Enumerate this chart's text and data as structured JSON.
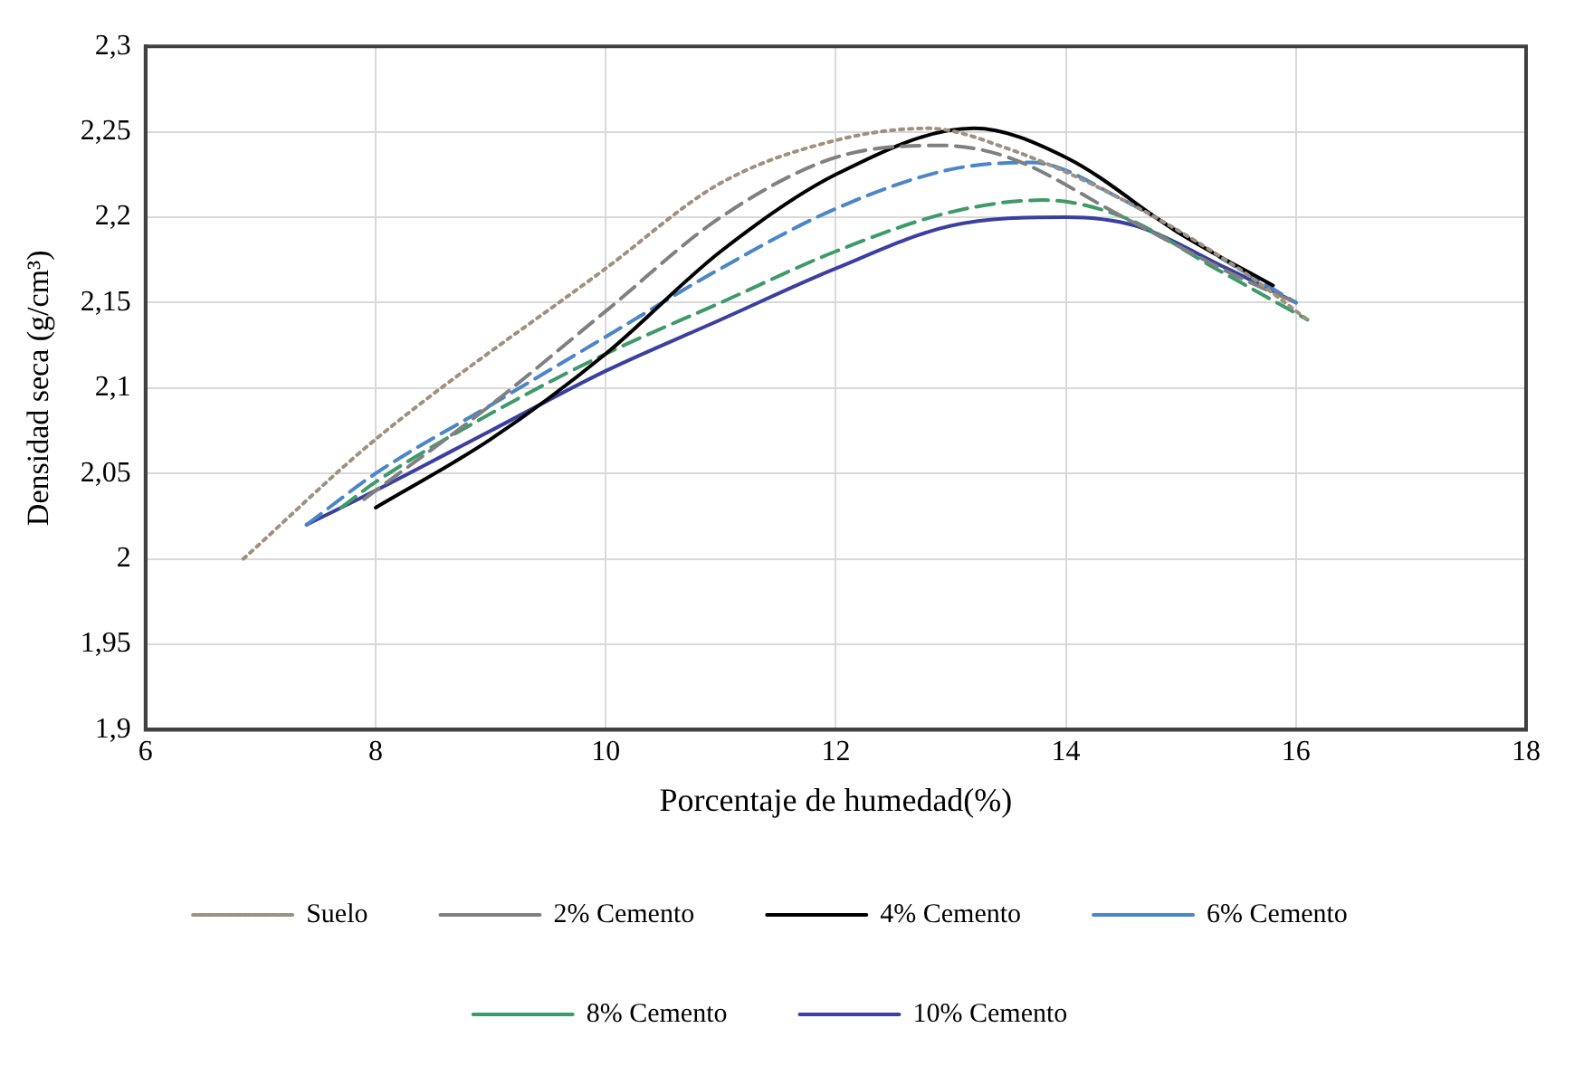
{
  "chart_data": {
    "type": "line",
    "xlabel": "Porcentaje de humedad(%)",
    "ylabel": "Densidad seca (g/cm³)",
    "xlim": [
      6,
      18
    ],
    "xticks": [
      6,
      8,
      10,
      12,
      14,
      16,
      18
    ],
    "ylim": [
      1.9,
      2.3
    ],
    "yticks": [
      {
        "value": 1.9,
        "label": "1,9"
      },
      {
        "value": 1.95,
        "label": "1,95"
      },
      2,
      {
        "value": 2.05,
        "label": "2,05"
      },
      {
        "value": 2.1,
        "label": "2,1"
      },
      {
        "value": 2.15,
        "label": "2,15"
      },
      {
        "value": 2.2,
        "label": "2,2"
      },
      {
        "value": 2.25,
        "label": "2,25"
      },
      {
        "value": 2.3,
        "label": "2,3"
      }
    ],
    "grid": true,
    "legend": "bottom",
    "marker": "none",
    "series": [
      {
        "name": "Suelo",
        "color": "#a09080",
        "line_style": "dotted",
        "x": [
          6.85,
          8,
          10,
          11,
          12,
          12.8,
          13.5,
          14.5,
          15.5,
          16.1
        ],
        "values": [
          2.0,
          2.07,
          2.17,
          2.22,
          2.245,
          2.252,
          2.24,
          2.21,
          2.17,
          2.14
        ]
      },
      {
        "name": "2% Cemento",
        "color": "#808080",
        "line_style": "dashed",
        "x": [
          7.9,
          9,
          10,
          11,
          12,
          12.9,
          13.5,
          14.5,
          15.5,
          16
        ],
        "values": [
          2.035,
          2.09,
          2.145,
          2.2,
          2.235,
          2.242,
          2.235,
          2.2,
          2.165,
          2.15
        ]
      },
      {
        "name": "4% Cemento",
        "color": "#000000",
        "line_style": "solid",
        "x": [
          8,
          9,
          10,
          11,
          12,
          13.2,
          14,
          15,
          15.8
        ],
        "values": [
          2.03,
          2.07,
          2.12,
          2.18,
          2.225,
          2.252,
          2.235,
          2.19,
          2.16
        ]
      },
      {
        "name": "6% Cemento",
        "color": "#4a86c8",
        "line_style": "dashed",
        "x": [
          7.4,
          8,
          9,
          10,
          11,
          12,
          13,
          13.7,
          14.5,
          15.5,
          16
        ],
        "values": [
          2.02,
          2.05,
          2.09,
          2.13,
          2.17,
          2.205,
          2.228,
          2.232,
          2.21,
          2.17,
          2.15
        ]
      },
      {
        "name": "8% Cemento",
        "color": "#3e9a6a",
        "line_style": "dashed",
        "x": [
          7.7,
          8,
          9,
          10,
          11,
          12,
          13,
          13.8,
          14.5,
          15.3,
          16.1
        ],
        "values": [
          2.03,
          2.045,
          2.085,
          2.12,
          2.15,
          2.18,
          2.203,
          2.21,
          2.2,
          2.17,
          2.14
        ]
      },
      {
        "name": "10% Cemento",
        "color": "#3a3fa0",
        "line_style": "solid",
        "x": [
          7.4,
          8,
          9,
          10,
          11,
          12,
          13,
          14,
          14.6,
          15.4,
          16
        ],
        "values": [
          2.02,
          2.04,
          2.075,
          2.11,
          2.14,
          2.17,
          2.195,
          2.2,
          2.195,
          2.17,
          2.15
        ]
      }
    ]
  }
}
